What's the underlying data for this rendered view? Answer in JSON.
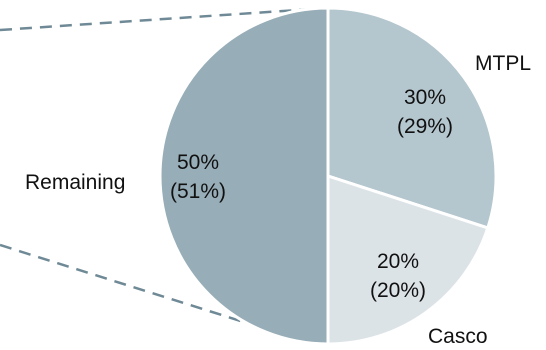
{
  "chart_data": {
    "type": "pie",
    "categories": [
      "MTPL",
      "Casco",
      "Remaining"
    ],
    "values": [
      30,
      20,
      50
    ],
    "secondary_values": [
      29,
      20,
      51
    ],
    "percent_labels": [
      "30%",
      "20%",
      "50%"
    ],
    "secondary_labels": [
      "(29%)",
      "(20%)",
      "(51%)"
    ],
    "colors": [
      "#b4c6ce",
      "#dce3e7",
      "#97adb7"
    ],
    "connector_color": "#6f8a96",
    "title": "",
    "legend": "none"
  }
}
